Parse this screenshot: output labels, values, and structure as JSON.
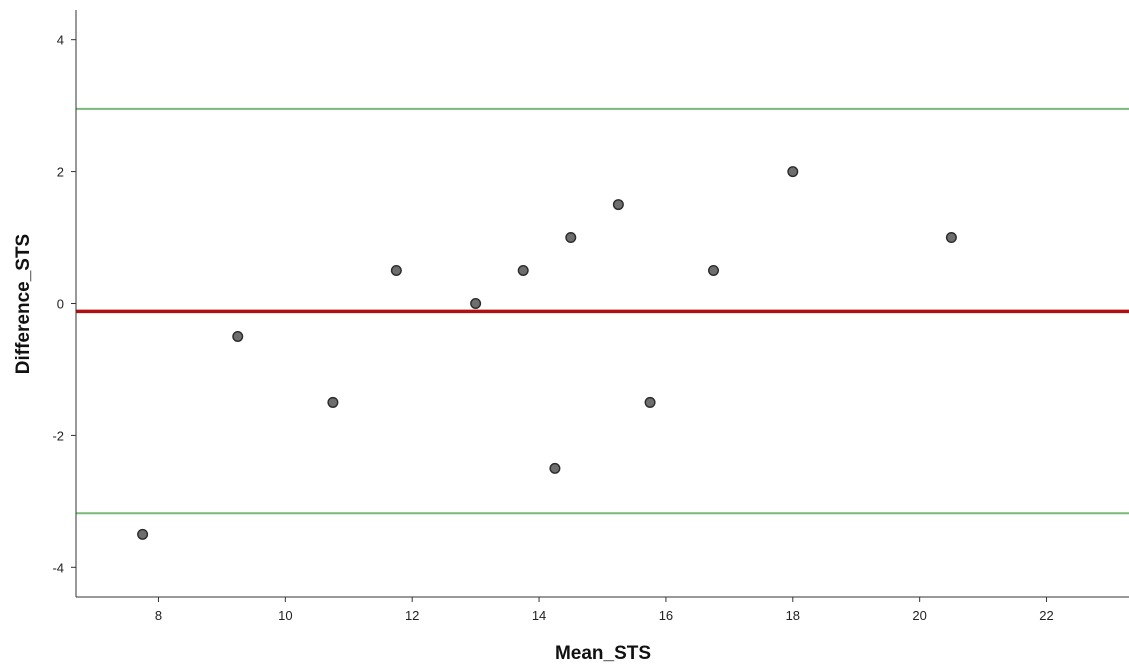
{
  "chart_data": {
    "type": "scatter",
    "title": "",
    "xlabel": "Mean_STS",
    "ylabel": "Difference_STS",
    "xlim": [
      6.7,
      23.3
    ],
    "ylim": [
      -4.45,
      4.45
    ],
    "xticks": [
      8,
      10,
      12,
      14,
      16,
      18,
      20,
      22
    ],
    "yticks": [
      -4,
      -2,
      0,
      2,
      4
    ],
    "grid": false,
    "points": [
      {
        "x": 7.75,
        "y": -3.5
      },
      {
        "x": 9.25,
        "y": -0.5
      },
      {
        "x": 10.75,
        "y": -1.5
      },
      {
        "x": 11.75,
        "y": 0.5
      },
      {
        "x": 13.0,
        "y": 0.0
      },
      {
        "x": 13.75,
        "y": 0.5
      },
      {
        "x": 14.25,
        "y": -2.5
      },
      {
        "x": 14.5,
        "y": 1.0
      },
      {
        "x": 15.25,
        "y": 1.5
      },
      {
        "x": 15.75,
        "y": -1.5
      },
      {
        "x": 16.75,
        "y": 0.5
      },
      {
        "x": 18.0,
        "y": 2.0
      },
      {
        "x": 20.5,
        "y": 1.0
      }
    ],
    "reference_lines": [
      {
        "kind": "mean-difference",
        "y": -0.12,
        "color": "#b01010"
      },
      {
        "kind": "upper-limit-of-agreement",
        "y": 2.95,
        "color": "#7ab87a"
      },
      {
        "kind": "lower-limit-of-agreement",
        "y": -3.18,
        "color": "#7ab87a"
      }
    ],
    "marker": {
      "fill": "#6e6e6e",
      "stroke": "#2a2a2a"
    }
  }
}
